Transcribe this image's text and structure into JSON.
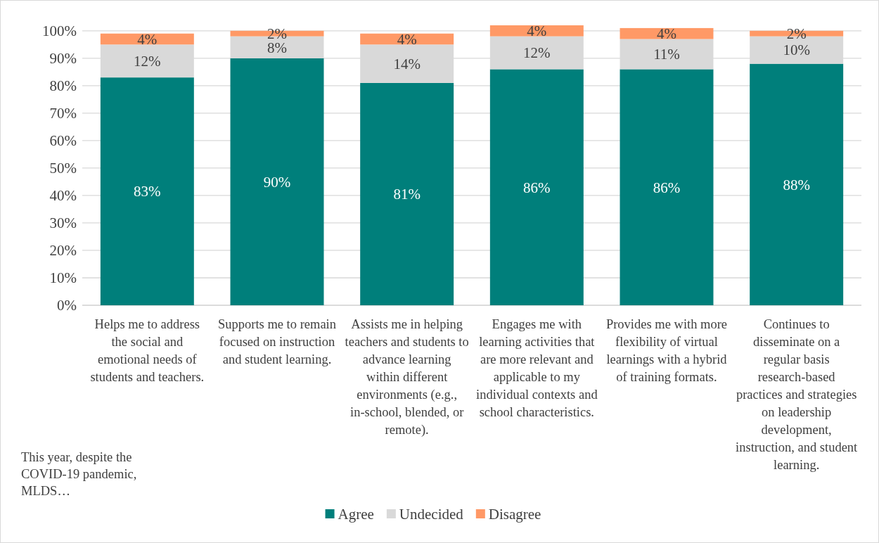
{
  "chart_data": {
    "type": "bar",
    "stacked": true,
    "categories": [
      "Helps me to address the social and emotional needs of students and teachers.",
      "Supports me to remain focused on instruction and student learning.",
      "Assists me in helping teachers and students to advance learning within different environments (e.g., in-school, blended, or remote).",
      "Engages me with learning activities that are more relevant and applicable to my individual contexts and school characteristics.",
      "Provides me with more flexibility of virtual learnings with a hybrid of training formats.",
      "Continues to disseminate on a regular basis research-based practices and strategies on leadership development, instruction, and student learning."
    ],
    "series": [
      {
        "name": "Agree",
        "color": "#007f7b",
        "values": [
          83,
          90,
          81,
          86,
          86,
          88
        ],
        "value_labels": [
          "83%",
          "90%",
          "81%",
          "86%",
          "86%",
          "88%"
        ]
      },
      {
        "name": "Undecided",
        "color": "#d9d9d9",
        "values": [
          12,
          8,
          14,
          12,
          11,
          10
        ],
        "value_labels": [
          "12%",
          "8%",
          "14%",
          "12%",
          "11%",
          "10%"
        ]
      },
      {
        "name": "Disagree",
        "color": "#ff9966",
        "values": [
          4,
          2,
          4,
          4,
          4,
          2
        ],
        "value_labels": [
          "4%",
          "2%",
          "4%",
          "4%",
          "4%",
          "2%"
        ]
      }
    ],
    "ylim": [
      0,
      102
    ],
    "yticks": [
      {
        "value": 0,
        "label": "0%"
      },
      {
        "value": 10,
        "label": "10%"
      },
      {
        "value": 20,
        "label": "20%"
      },
      {
        "value": 30,
        "label": "30%"
      },
      {
        "value": 40,
        "label": "40%"
      },
      {
        "value": 50,
        "label": "50%"
      },
      {
        "value": 60,
        "label": "60%"
      },
      {
        "value": 70,
        "label": "70%"
      },
      {
        "value": 80,
        "label": "80%"
      },
      {
        "value": 90,
        "label": "90%"
      },
      {
        "value": 100,
        "label": "100%"
      }
    ],
    "grid": "y",
    "legend": "bottom",
    "annotations": [
      "This year, despite the COVID-19 pandemic, MLDS…"
    ]
  }
}
